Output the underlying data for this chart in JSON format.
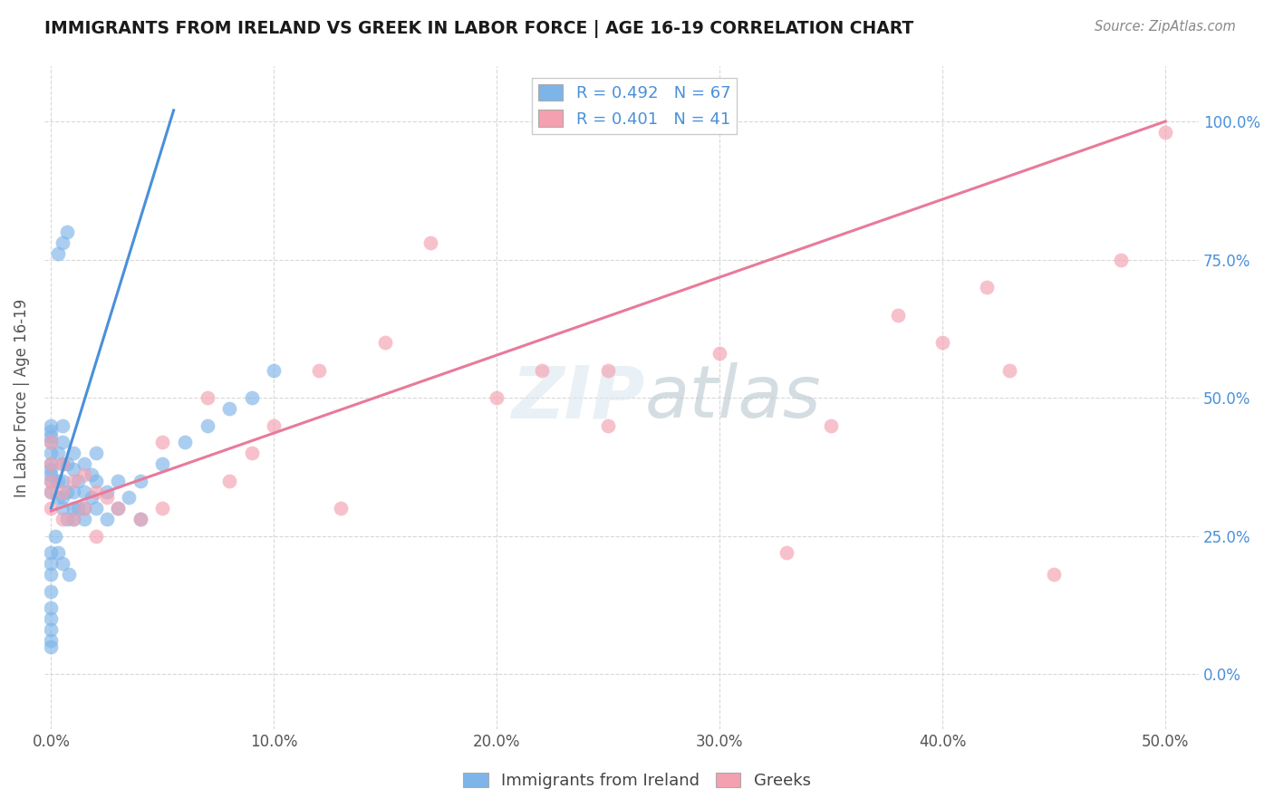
{
  "title": "IMMIGRANTS FROM IRELAND VS GREEK IN LABOR FORCE | AGE 16-19 CORRELATION CHART",
  "source": "Source: ZipAtlas.com",
  "ylabel": "In Labor Force | Age 16-19",
  "x_tick_vals": [
    0.0,
    0.1,
    0.2,
    0.3,
    0.4,
    0.5
  ],
  "x_tick_labels": [
    "0.0%",
    "10.0%",
    "20.0%",
    "30.0%",
    "40.0%",
    "50.0%"
  ],
  "y_tick_vals": [
    0.0,
    0.25,
    0.5,
    0.75,
    1.0
  ],
  "y_tick_labels": [
    "0.0%",
    "25.0%",
    "50.0%",
    "75.0%",
    "100.0%"
  ],
  "xlim": [
    -0.003,
    0.515
  ],
  "ylim": [
    -0.1,
    1.1
  ],
  "legend_entries": [
    {
      "label": "Immigrants from Ireland",
      "color": "#7eb5e8",
      "R": 0.492,
      "N": 67
    },
    {
      "label": "Greeks",
      "color": "#f4a0b0",
      "R": 0.401,
      "N": 41
    }
  ],
  "ireland_line_color": "#4a90d9",
  "greek_line_color": "#e87a9a",
  "ireland_line_x": [
    0.0,
    0.055
  ],
  "ireland_line_y": [
    0.3,
    1.02
  ],
  "greek_line_x": [
    0.0,
    0.5
  ],
  "greek_line_y": [
    0.295,
    1.0
  ],
  "ireland_x": [
    0.0,
    0.0,
    0.0,
    0.0,
    0.0,
    0.0,
    0.0,
    0.0,
    0.0,
    0.0,
    0.003,
    0.003,
    0.003,
    0.005,
    0.005,
    0.005,
    0.005,
    0.005,
    0.005,
    0.007,
    0.007,
    0.007,
    0.01,
    0.01,
    0.01,
    0.01,
    0.01,
    0.012,
    0.012,
    0.015,
    0.015,
    0.015,
    0.015,
    0.018,
    0.018,
    0.02,
    0.02,
    0.02,
    0.025,
    0.025,
    0.03,
    0.03,
    0.035,
    0.04,
    0.04,
    0.05,
    0.06,
    0.07,
    0.08,
    0.09,
    0.1,
    0.005,
    0.007,
    0.003,
    0.0,
    0.0,
    0.0,
    0.0,
    0.0,
    0.0,
    0.0,
    0.0,
    0.0,
    0.002,
    0.003,
    0.005,
    0.008
  ],
  "ireland_y": [
    0.33,
    0.35,
    0.36,
    0.37,
    0.38,
    0.4,
    0.42,
    0.43,
    0.44,
    0.45,
    0.32,
    0.35,
    0.4,
    0.3,
    0.32,
    0.35,
    0.38,
    0.42,
    0.45,
    0.28,
    0.33,
    0.38,
    0.28,
    0.3,
    0.33,
    0.37,
    0.4,
    0.3,
    0.35,
    0.28,
    0.3,
    0.33,
    0.38,
    0.32,
    0.36,
    0.3,
    0.35,
    0.4,
    0.28,
    0.33,
    0.3,
    0.35,
    0.32,
    0.28,
    0.35,
    0.38,
    0.42,
    0.45,
    0.48,
    0.5,
    0.55,
    0.78,
    0.8,
    0.76,
    0.2,
    0.22,
    0.18,
    0.15,
    0.12,
    0.1,
    0.08,
    0.06,
    0.05,
    0.25,
    0.22,
    0.2,
    0.18
  ],
  "greek_x": [
    0.0,
    0.0,
    0.0,
    0.0,
    0.0,
    0.005,
    0.005,
    0.005,
    0.01,
    0.01,
    0.015,
    0.015,
    0.02,
    0.02,
    0.025,
    0.03,
    0.04,
    0.05,
    0.05,
    0.07,
    0.08,
    0.09,
    0.1,
    0.12,
    0.13,
    0.15,
    0.17,
    0.2,
    0.22,
    0.25,
    0.25,
    0.3,
    0.35,
    0.38,
    0.4,
    0.42,
    0.45,
    0.48,
    0.5,
    0.33,
    0.43
  ],
  "greek_y": [
    0.3,
    0.33,
    0.35,
    0.38,
    0.42,
    0.28,
    0.33,
    0.38,
    0.28,
    0.35,
    0.3,
    0.36,
    0.25,
    0.33,
    0.32,
    0.3,
    0.28,
    0.3,
    0.42,
    0.5,
    0.35,
    0.4,
    0.45,
    0.55,
    0.3,
    0.6,
    0.78,
    0.5,
    0.55,
    0.45,
    0.55,
    0.58,
    0.45,
    0.65,
    0.6,
    0.7,
    0.18,
    0.75,
    0.98,
    0.22,
    0.55
  ],
  "background_color": "#ffffff",
  "grid_color": "#d8d8d8",
  "title_color": "#1a1a1a",
  "source_color": "#888888",
  "watermark_color": "#dce8f0",
  "watermark_alpha": 0.6,
  "scatter_size": 130,
  "scatter_alpha": 0.65
}
